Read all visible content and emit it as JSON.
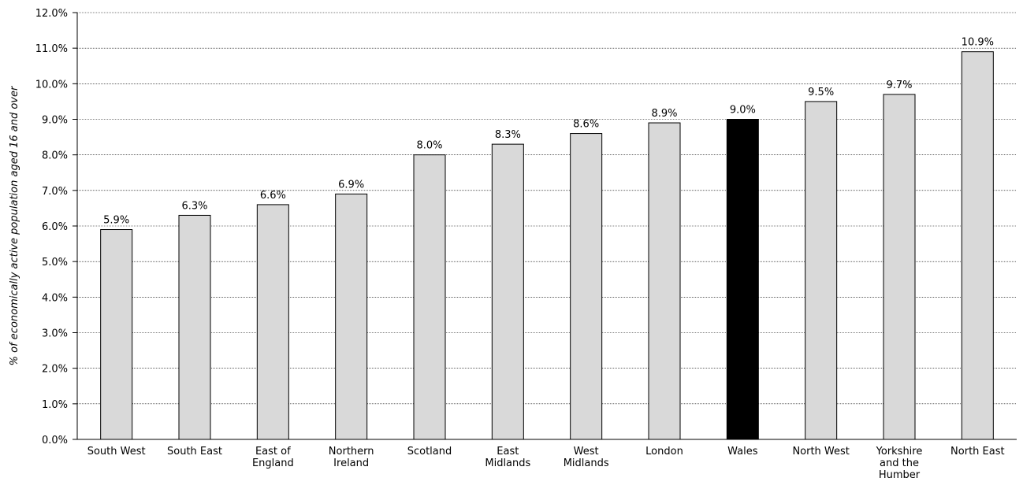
{
  "chart_data": {
    "type": "bar",
    "title": "",
    "xlabel": "",
    "ylabel": "% of economically active population aged 16 and over",
    "ylim": [
      0,
      12
    ],
    "ytick_step": 1,
    "ytick_format": "%",
    "grid": true,
    "categories": [
      [
        "South West"
      ],
      [
        "South East"
      ],
      [
        "East of",
        "England"
      ],
      [
        "Northern",
        "Ireland"
      ],
      [
        "Scotland"
      ],
      [
        "East",
        "Midlands"
      ],
      [
        "West",
        "Midlands"
      ],
      [
        "London"
      ],
      [
        "Wales"
      ],
      [
        "North West"
      ],
      [
        "Yorkshire",
        "and the",
        "Humber"
      ],
      [
        "North East"
      ]
    ],
    "values": [
      5.9,
      6.3,
      6.6,
      6.9,
      8.0,
      8.3,
      8.6,
      8.9,
      9.0,
      9.5,
      9.7,
      10.9
    ],
    "data_labels": [
      "5.9%",
      "6.3%",
      "6.6%",
      "6.9%",
      "8.0%",
      "8.3%",
      "8.6%",
      "8.9%",
      "9.0%",
      "9.5%",
      "9.7%",
      "10.9%"
    ],
    "highlight_category": "Wales",
    "colors": {
      "bar": "#d9d9d9",
      "highlight": "#000000",
      "outline": "#000000",
      "grid": "#000000"
    }
  }
}
